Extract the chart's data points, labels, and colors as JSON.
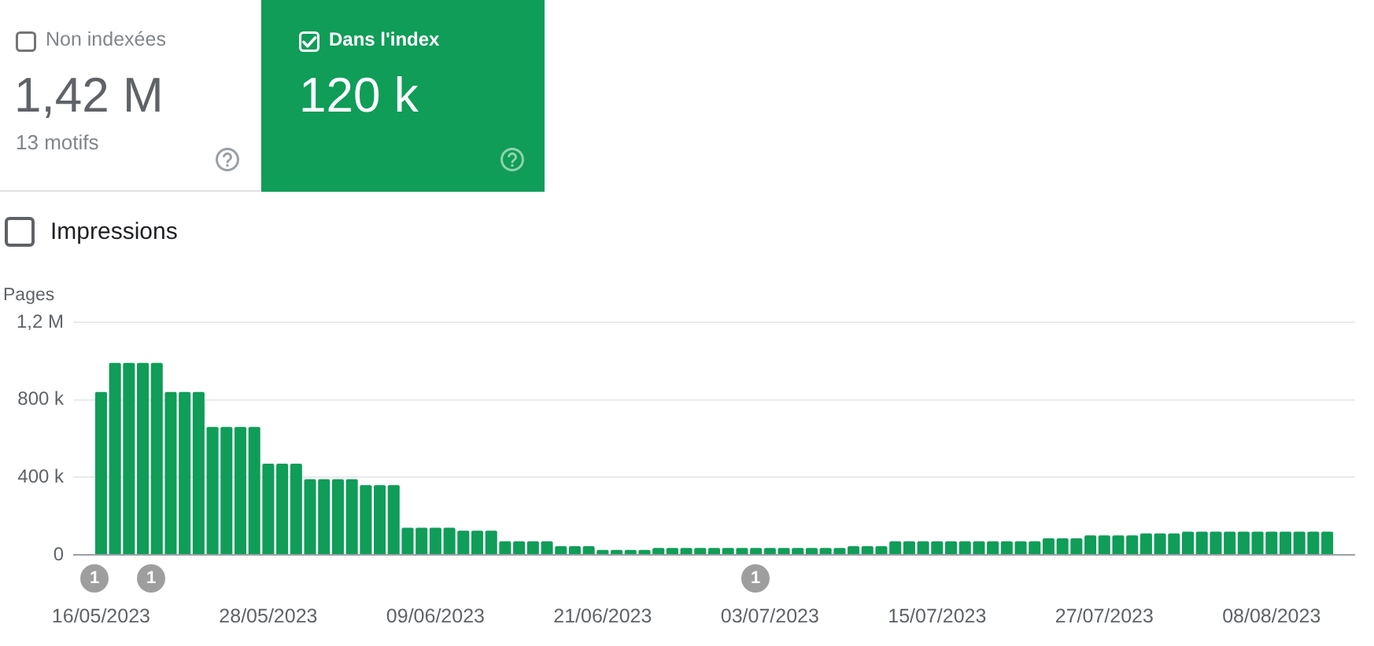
{
  "chart_data": {
    "type": "bar",
    "ylabel": "Pages",
    "x": [
      "2023-05-16",
      "2023-05-17",
      "2023-05-18",
      "2023-05-19",
      "2023-05-20",
      "2023-05-21",
      "2023-05-22",
      "2023-05-23",
      "2023-05-24",
      "2023-05-25",
      "2023-05-26",
      "2023-05-27",
      "2023-05-28",
      "2023-05-29",
      "2023-05-30",
      "2023-05-31",
      "2023-06-01",
      "2023-06-02",
      "2023-06-03",
      "2023-06-04",
      "2023-06-05",
      "2023-06-06",
      "2023-06-07",
      "2023-06-08",
      "2023-06-09",
      "2023-06-10",
      "2023-06-11",
      "2023-06-12",
      "2023-06-13",
      "2023-06-14",
      "2023-06-15",
      "2023-06-16",
      "2023-06-17",
      "2023-06-18",
      "2023-06-19",
      "2023-06-20",
      "2023-06-21",
      "2023-06-22",
      "2023-06-23",
      "2023-06-24",
      "2023-06-25",
      "2023-06-26",
      "2023-06-27",
      "2023-06-28",
      "2023-06-29",
      "2023-06-30",
      "2023-07-01",
      "2023-07-02",
      "2023-07-03",
      "2023-07-04",
      "2023-07-05",
      "2023-07-06",
      "2023-07-07",
      "2023-07-08",
      "2023-07-09",
      "2023-07-10",
      "2023-07-11",
      "2023-07-12",
      "2023-07-13",
      "2023-07-14",
      "2023-07-15",
      "2023-07-16",
      "2023-07-17",
      "2023-07-18",
      "2023-07-19",
      "2023-07-20",
      "2023-07-21",
      "2023-07-22",
      "2023-07-23",
      "2023-07-24",
      "2023-07-25",
      "2023-07-26",
      "2023-07-27",
      "2023-07-28",
      "2023-07-29",
      "2023-07-30",
      "2023-07-31",
      "2023-08-01",
      "2023-08-02",
      "2023-08-03",
      "2023-08-04",
      "2023-08-05",
      "2023-08-06",
      "2023-08-07",
      "2023-08-08",
      "2023-08-09",
      "2023-08-10",
      "2023-08-11",
      "2023-08-12"
    ],
    "series": [
      {
        "name": "Dans l'index",
        "color": "#0f9d58",
        "values": [
          840000,
          990000,
          990000,
          990000,
          990000,
          840000,
          840000,
          840000,
          660000,
          660000,
          660000,
          660000,
          470000,
          470000,
          470000,
          390000,
          390000,
          390000,
          390000,
          360000,
          360000,
          360000,
          140000,
          140000,
          140000,
          140000,
          125000,
          125000,
          125000,
          70000,
          70000,
          70000,
          70000,
          45000,
          45000,
          45000,
          25000,
          25000,
          25000,
          25000,
          35000,
          35000,
          35000,
          35000,
          35000,
          35000,
          35000,
          35000,
          35000,
          35000,
          35000,
          35000,
          35000,
          35000,
          45000,
          45000,
          45000,
          70000,
          70000,
          70000,
          70000,
          70000,
          70000,
          70000,
          70000,
          70000,
          70000,
          70000,
          85000,
          85000,
          85000,
          100000,
          100000,
          100000,
          100000,
          110000,
          110000,
          110000,
          120000,
          120000,
          120000,
          120000,
          120000,
          120000,
          120000,
          120000,
          120000,
          120000,
          120000
        ]
      }
    ],
    "xlim": [
      "2023-05-14",
      "2023-08-14"
    ],
    "xticks": [
      {
        "value": "2023-05-16",
        "label": "16/05/2023"
      },
      {
        "value": "2023-05-28",
        "label": "28/05/2023"
      },
      {
        "value": "2023-06-09",
        "label": "09/06/2023"
      },
      {
        "value": "2023-06-21",
        "label": "21/06/2023"
      },
      {
        "value": "2023-07-03",
        "label": "03/07/2023"
      },
      {
        "value": "2023-07-15",
        "label": "15/07/2023"
      },
      {
        "value": "2023-07-27",
        "label": "27/07/2023"
      },
      {
        "value": "2023-08-08",
        "label": "08/08/2023"
      }
    ],
    "ylim": [
      0,
      1200000
    ],
    "yticks": [
      0,
      {
        "value": 400000,
        "label": "400 k"
      },
      {
        "value": 800000,
        "label": "800 k"
      },
      {
        "value": 1200000,
        "label": "1,2 M"
      }
    ],
    "grid": "y",
    "legend": "top left",
    "annotations": [
      "Non indexées",
      "1,42 M",
      "13 motifs",
      "120 k",
      "Impressions",
      "1",
      "1",
      "1"
    ]
  }
}
